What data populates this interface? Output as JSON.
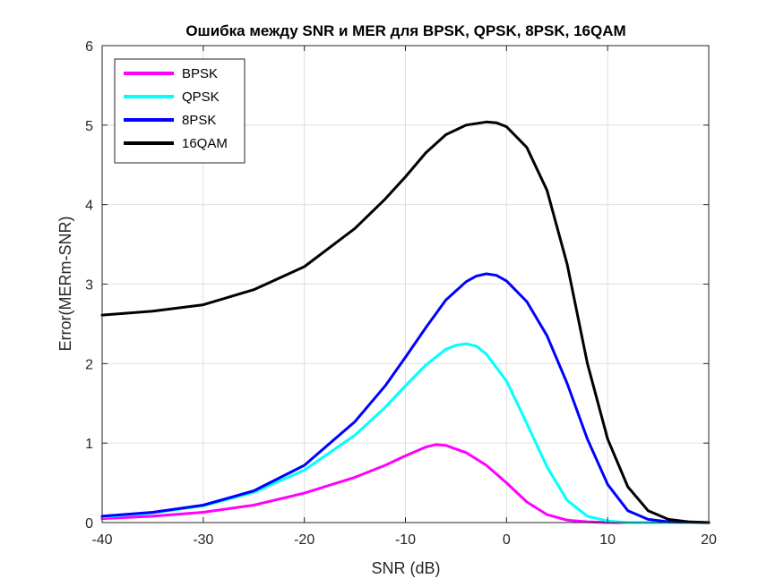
{
  "chart_data": {
    "type": "line",
    "title": "Ошибка между SNR и MER для BPSK, QPSK, 8PSK, 16QAM",
    "xlabel": "SNR (dB)",
    "ylabel": "Error(MERm-SNR)",
    "xlim": [
      -40,
      20
    ],
    "ylim": [
      0,
      6
    ],
    "xticks": [
      -40,
      -30,
      -20,
      -10,
      0,
      10,
      20
    ],
    "yticks": [
      0,
      1,
      2,
      3,
      4,
      5,
      6
    ],
    "grid": true,
    "legend_position": "top-left",
    "series": [
      {
        "name": "BPSK",
        "color": "#FF00FF",
        "x": [
          -40,
          -35,
          -30,
          -25,
          -20,
          -15,
          -12,
          -10,
          -8,
          -7,
          -6,
          -4,
          -2,
          0,
          2,
          4,
          6,
          8,
          10,
          12,
          20
        ],
        "y": [
          0.05,
          0.08,
          0.13,
          0.22,
          0.37,
          0.57,
          0.72,
          0.84,
          0.95,
          0.98,
          0.97,
          0.88,
          0.72,
          0.5,
          0.26,
          0.1,
          0.03,
          0.01,
          0.0,
          0.0,
          0.0
        ]
      },
      {
        "name": "QPSK",
        "color": "#00FFFF",
        "x": [
          -40,
          -35,
          -30,
          -25,
          -20,
          -15,
          -12,
          -10,
          -8,
          -6,
          -5,
          -4,
          -3,
          -2,
          0,
          2,
          4,
          6,
          8,
          10,
          12,
          14,
          20
        ],
        "y": [
          0.07,
          0.12,
          0.21,
          0.38,
          0.66,
          1.1,
          1.45,
          1.72,
          1.98,
          2.18,
          2.23,
          2.25,
          2.22,
          2.12,
          1.78,
          1.25,
          0.7,
          0.28,
          0.08,
          0.02,
          0.0,
          0.0,
          0.0
        ]
      },
      {
        "name": "8PSK",
        "color": "#0000FF",
        "x": [
          -40,
          -35,
          -30,
          -25,
          -20,
          -15,
          -12,
          -10,
          -8,
          -6,
          -4,
          -3,
          -2,
          -1,
          0,
          2,
          4,
          6,
          8,
          10,
          12,
          14,
          16,
          20
        ],
        "y": [
          0.08,
          0.13,
          0.22,
          0.4,
          0.72,
          1.27,
          1.72,
          2.08,
          2.45,
          2.8,
          3.03,
          3.1,
          3.13,
          3.11,
          3.04,
          2.78,
          2.35,
          1.75,
          1.05,
          0.48,
          0.15,
          0.04,
          0.01,
          0.0
        ]
      },
      {
        "name": "16QAM",
        "color": "#000000",
        "x": [
          -40,
          -35,
          -30,
          -25,
          -20,
          -15,
          -12,
          -10,
          -8,
          -6,
          -4,
          -2,
          -1,
          0,
          2,
          4,
          6,
          8,
          10,
          12,
          14,
          16,
          18,
          20
        ],
        "y": [
          2.61,
          2.66,
          2.74,
          2.93,
          3.22,
          3.7,
          4.07,
          4.35,
          4.65,
          4.88,
          5.0,
          5.04,
          5.03,
          4.98,
          4.72,
          4.18,
          3.25,
          2.0,
          1.05,
          0.45,
          0.15,
          0.04,
          0.01,
          0.0
        ]
      }
    ]
  }
}
